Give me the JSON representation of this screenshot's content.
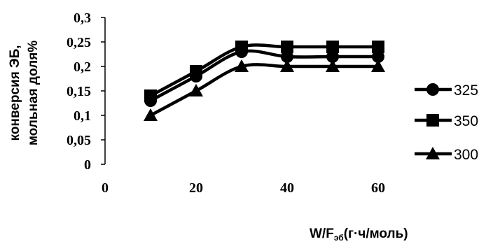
{
  "chart_data": {
    "type": "line",
    "x": [
      10,
      20,
      30,
      40,
      50,
      60
    ],
    "series": [
      {
        "name": "325",
        "marker": "circle",
        "values": [
          0.13,
          0.18,
          0.23,
          0.22,
          0.22,
          0.22
        ]
      },
      {
        "name": "350",
        "marker": "square",
        "values": [
          0.14,
          0.19,
          0.24,
          0.24,
          0.24,
          0.24
        ]
      },
      {
        "name": "300",
        "marker": "triangle",
        "values": [
          0.1,
          0.15,
          0.2,
          0.2,
          0.2,
          0.2
        ]
      }
    ],
    "xlim": [
      0,
      60
    ],
    "ylim": [
      0,
      0.3
    ],
    "xticks": [
      "0",
      "20",
      "40",
      "60"
    ],
    "yticks": [
      "0",
      "0,05",
      "0,1",
      "0,15",
      "0,2",
      "0,25",
      "0,3"
    ],
    "ylabel_line1": "конверсия ЭБ,",
    "ylabel_line2": "мольная доля%",
    "xlabel_main": "W/F",
    "xlabel_sub": "эб",
    "xlabel_rest": "(г·ч/моль)",
    "legend_position": "right",
    "grid": false,
    "line_color": "#000000"
  }
}
